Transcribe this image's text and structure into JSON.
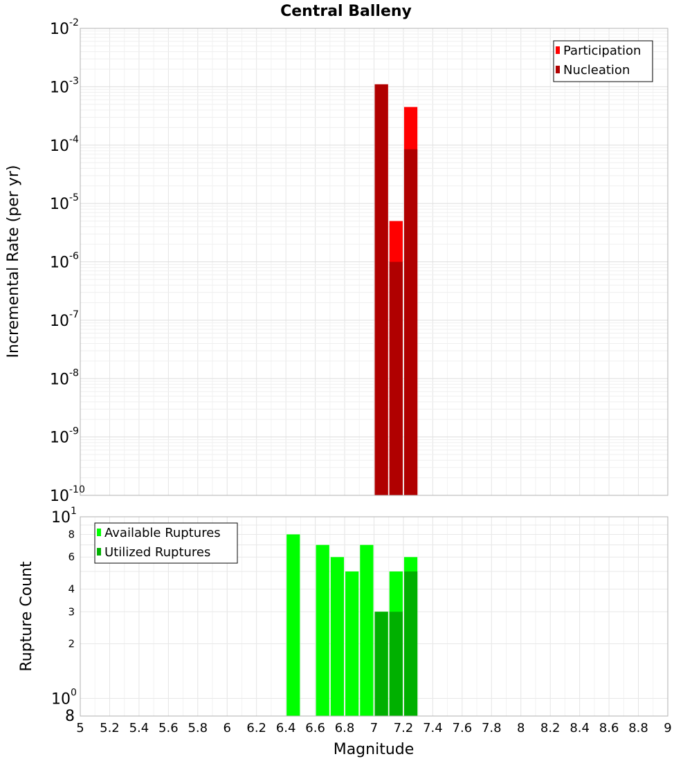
{
  "chart_data": [
    {
      "type": "bar",
      "title": "Central Balleny",
      "xlabel": "Magnitude",
      "ylabel": "Incremental Rate (per yr)",
      "yscale": "log",
      "xlim": [
        5,
        9
      ],
      "ylim": [
        1e-10,
        0.01
      ],
      "grid": true,
      "legend_position": "top-right",
      "bar_width": 0.1,
      "x_ticks": [
        "5",
        "5.2",
        "5.4",
        "5.6",
        "5.8",
        "6",
        "6.2",
        "6.4",
        "6.6",
        "6.8",
        "7",
        "7.2",
        "7.4",
        "7.6",
        "7.8",
        "8",
        "8.2",
        "8.4",
        "8.6",
        "8.8",
        "9"
      ],
      "y_ticks": [
        {
          "base": "10",
          "exp": "-10",
          "value": 1e-10
        },
        {
          "base": "10",
          "exp": "-9",
          "value": 1e-09
        },
        {
          "base": "10",
          "exp": "-8",
          "value": 1e-08
        },
        {
          "base": "10",
          "exp": "-7",
          "value": 1e-07
        },
        {
          "base": "10",
          "exp": "-6",
          "value": 1e-06
        },
        {
          "base": "10",
          "exp": "-5",
          "value": 1e-05
        },
        {
          "base": "10",
          "exp": "-4",
          "value": 0.0001
        },
        {
          "base": "10",
          "exp": "-3",
          "value": 0.001
        },
        {
          "base": "10",
          "exp": "-2",
          "value": 0.01
        }
      ],
      "series": [
        {
          "name": "Participation",
          "color": "#ff0000",
          "x": [
            7.05,
            7.15,
            7.25
          ],
          "values": [
            0.0011,
            5e-06,
            0.00045
          ]
        },
        {
          "name": "Nucleation",
          "color": "#b00000",
          "x": [
            7.05,
            7.15,
            7.25
          ],
          "values": [
            0.0011,
            1e-06,
            8.5e-05
          ]
        }
      ]
    },
    {
      "type": "bar",
      "xlabel": "Magnitude",
      "ylabel": "Rupture Count",
      "yscale": "log",
      "xlim": [
        5,
        9
      ],
      "ylim": [
        0.8,
        10
      ],
      "grid": true,
      "legend_position": "top-left",
      "bar_width": 0.1,
      "y_ticks": [
        {
          "label": "8",
          "value": 8
        },
        {
          "label": "6",
          "value": 6
        },
        {
          "label": "4",
          "value": 4
        },
        {
          "label": "3",
          "value": 3
        },
        {
          "label": "2",
          "value": 2
        }
      ],
      "y_major_ticks": [
        {
          "base": "10",
          "exp": "1",
          "value": 10
        },
        {
          "base": "10",
          "exp": "0",
          "value": 1
        }
      ],
      "y_bottom_label": "8",
      "series": [
        {
          "name": "Available Ruptures",
          "color": "#00ff00",
          "x": [
            6.45,
            6.65,
            6.75,
            6.85,
            6.95,
            7.05,
            7.15,
            7.25
          ],
          "values": [
            8,
            7,
            6,
            5,
            7,
            3,
            5,
            6
          ]
        },
        {
          "name": "Utilized Ruptures",
          "color": "#00b000",
          "x": [
            7.05,
            7.15,
            7.25
          ],
          "values": [
            3,
            3,
            5
          ]
        }
      ]
    }
  ]
}
